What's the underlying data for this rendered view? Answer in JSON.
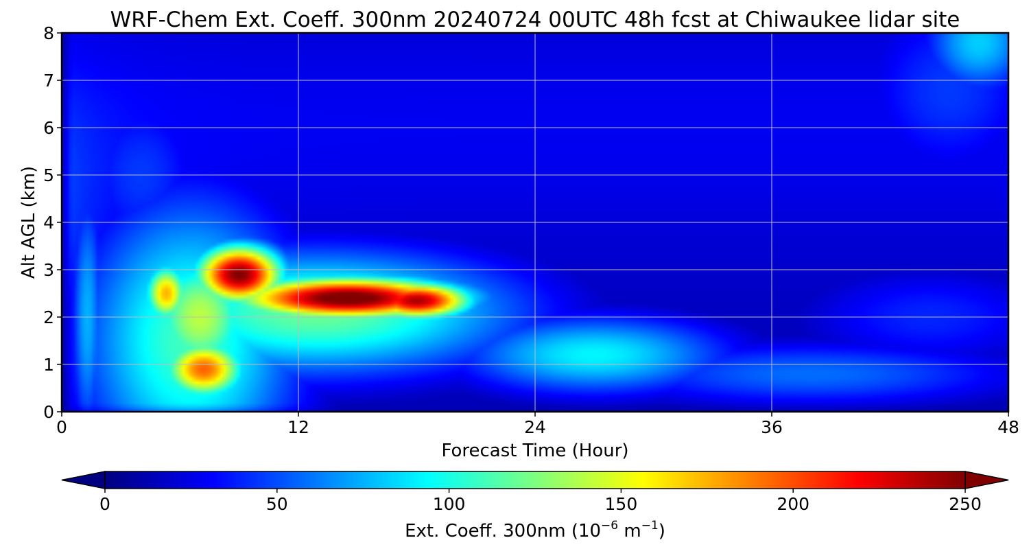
{
  "chart_data": {
    "type": "heatmap",
    "title": "WRF-Chem Ext. Coeff. 300nm  20240724 00UTC 48h fcst at Chiwaukee lidar site",
    "xlabel": "Forecast Time (Hour)",
    "ylabel": "Alt AGL (km)",
    "xlim": [
      0,
      48
    ],
    "ylim": [
      0,
      8
    ],
    "xticks": [
      "0",
      "12",
      "24",
      "36",
      "48"
    ],
    "yticks": [
      "0",
      "1",
      "2",
      "3",
      "4",
      "5",
      "6",
      "7",
      "8"
    ],
    "grid": true,
    "colormap": "jet",
    "colorbar": {
      "label": "Ext. Coeff. 300nm  (10",
      "label_exp1": "−6",
      "label_mid": " m",
      "label_exp2": "−1",
      "label_end": ")",
      "range": [
        0,
        250
      ],
      "extend": "both",
      "ticks": [
        "0",
        "50",
        "100",
        "150",
        "200",
        "250"
      ]
    },
    "features": [
      {
        "x": 14.5,
        "y": 2.4,
        "sx": 4.2,
        "sy": 0.32,
        "value": 262
      },
      {
        "x": 9.0,
        "y": 2.9,
        "sx": 1.6,
        "sy": 0.45,
        "value": 250
      },
      {
        "x": 18.0,
        "y": 2.35,
        "sx": 2.0,
        "sy": 0.28,
        "value": 240
      },
      {
        "x": 7.2,
        "y": 0.9,
        "sx": 1.5,
        "sy": 0.45,
        "value": 195
      },
      {
        "x": 5.3,
        "y": 2.5,
        "sx": 0.8,
        "sy": 0.45,
        "value": 175
      },
      {
        "x": 7.0,
        "y": 2.0,
        "sx": 2.0,
        "sy": 1.0,
        "value": 140
      },
      {
        "x": 13.0,
        "y": 2.1,
        "sx": 7.5,
        "sy": 0.95,
        "value": 120
      },
      {
        "x": 6.5,
        "y": 1.5,
        "sx": 4.0,
        "sy": 2.2,
        "value": 110
      },
      {
        "x": 27.0,
        "y": 1.2,
        "sx": 5.0,
        "sy": 0.6,
        "value": 92
      },
      {
        "x": 38.0,
        "y": 0.8,
        "sx": 8.0,
        "sy": 0.5,
        "value": 58
      },
      {
        "x": 1.3,
        "y": 2.0,
        "sx": 0.6,
        "sy": 2.0,
        "value": 75
      },
      {
        "x": 46.5,
        "y": 7.8,
        "sx": 2.0,
        "sy": 0.8,
        "value": 82
      },
      {
        "x": 45.0,
        "y": 6.8,
        "sx": 3.5,
        "sy": 1.5,
        "value": 45
      },
      {
        "x": 44.0,
        "y": 2.0,
        "sx": 5.0,
        "sy": 0.8,
        "value": 40
      },
      {
        "x": 4.0,
        "y": 5.0,
        "sx": 2.5,
        "sy": 1.4,
        "value": 45
      }
    ]
  }
}
